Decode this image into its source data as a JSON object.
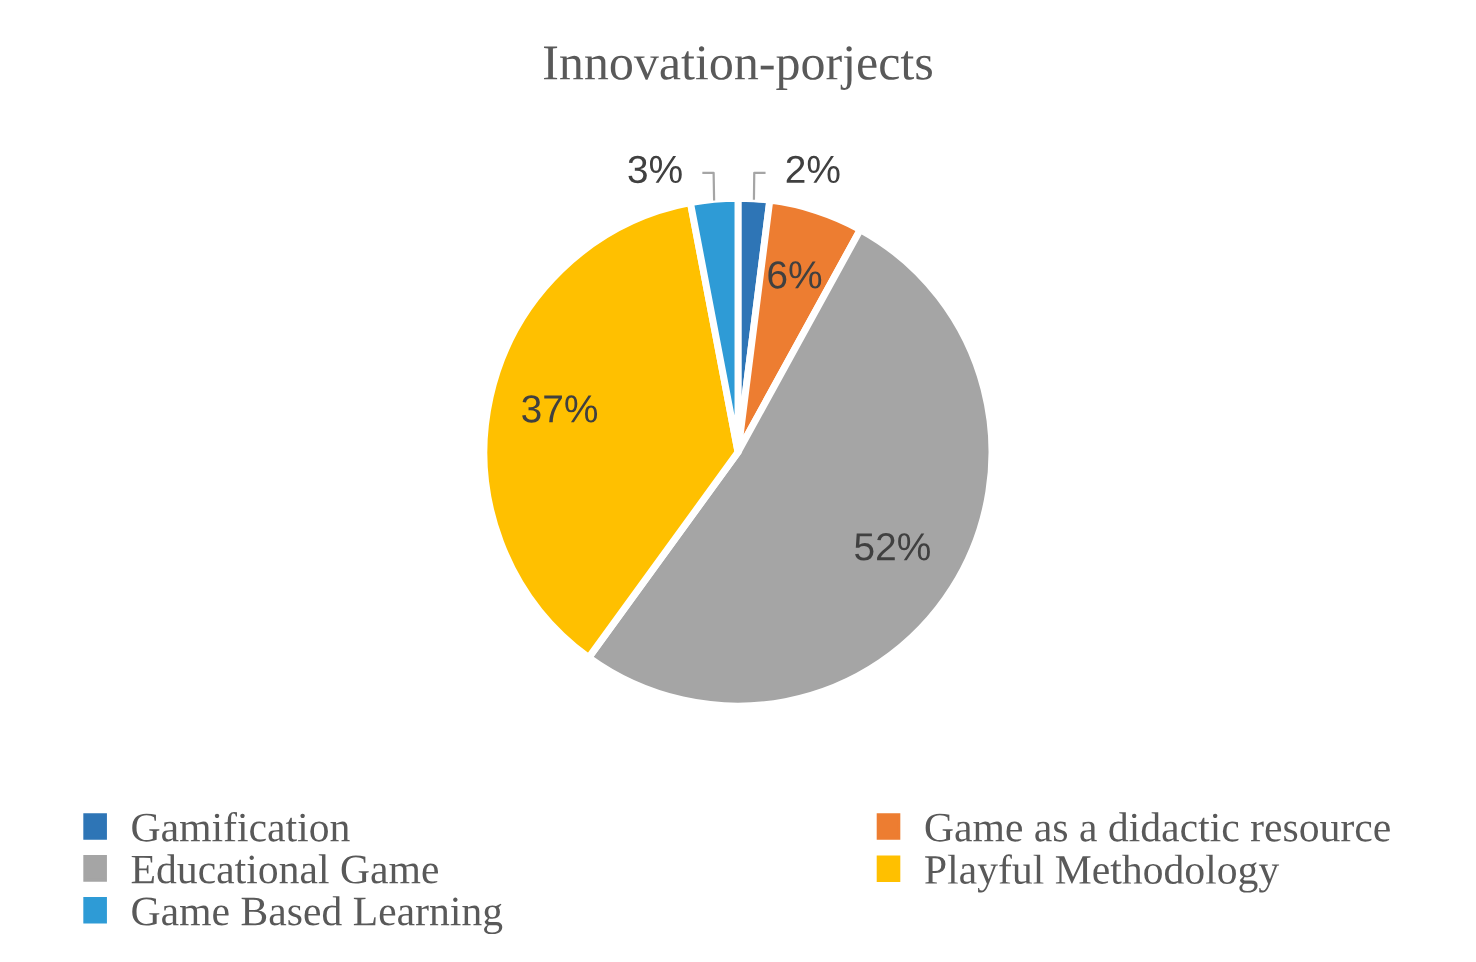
{
  "chart_data": {
    "type": "pie",
    "title": "Innovation-porjects",
    "categories": [
      "Gamification",
      "Game as a didactic resource",
      "Educational Game",
      "Playful Methodology",
      "Game Based Learning"
    ],
    "values": [
      2,
      6,
      52,
      37,
      3
    ],
    "colors": [
      "#2e75b6",
      "#ed7d31",
      "#a5a5a5",
      "#ffc000",
      "#2e9bd6"
    ],
    "value_labels": [
      "2%",
      "6%",
      "52%",
      "37%",
      "3%"
    ],
    "legend": "bottom"
  }
}
